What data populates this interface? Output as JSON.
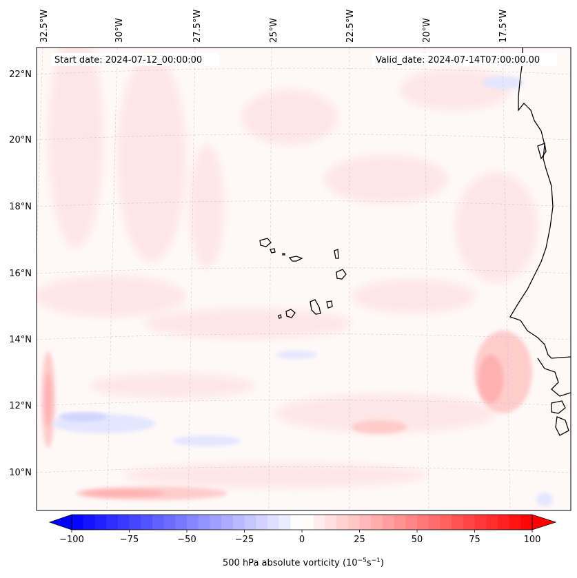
{
  "header": {
    "start_date": "Start date: 2024-07-12_00:00:00",
    "valid_date": "Valid_date: 2024-07-14T07:00:00.00"
  },
  "longitude_labels": [
    "32.5°W",
    "30°W",
    "27.5°W",
    "25°W",
    "22.5°W",
    "20°W",
    "17.5°W"
  ],
  "latitude_labels": [
    "22°N",
    "20°N",
    "18°N",
    "16°N",
    "14°N",
    "12°N",
    "10°N"
  ],
  "colorbar": {
    "title": "500 hPa absolute vorticity (10",
    "title_exp1": "−5",
    "title_mid": "s",
    "title_exp2": "−1",
    "title_end": ")",
    "ticks": [
      "−100",
      "−75",
      "−50",
      "−25",
      "0",
      "25",
      "50",
      "75",
      "100"
    ],
    "tick_values": [
      -100,
      -75,
      -50,
      -25,
      0,
      25,
      50,
      75,
      100
    ],
    "min": -100,
    "max": 100,
    "levels": 40,
    "neg_color": "#0000ff",
    "pos_color": "#ff0000",
    "mid_color": "#ffffff"
  },
  "colors": {
    "background_field": "#fff8f8",
    "coastline": "#000000",
    "gridline": "#c8c8c8"
  }
}
